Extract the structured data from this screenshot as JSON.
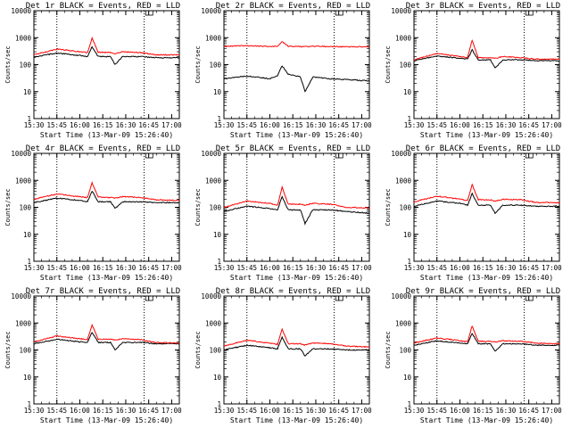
{
  "figure": {
    "colors": {
      "events": "#000000",
      "lld": "#ff0000",
      "axes": "#000000",
      "background": "#ffffff"
    }
  },
  "chart_data": [
    {
      "type": "line",
      "title": "Det 1r BLACK = Events, RED = LLD",
      "xlabel": "Start Time (13-Mar-09 15:26:40)",
      "ylabel": "Counts/sec",
      "xlim": [
        "15:30",
        "17:05"
      ],
      "ylim": [
        1,
        10000
      ],
      "yscale": "log",
      "x_ticks": [
        "15:30",
        "15:45",
        "16:00",
        "16:15",
        "16:30",
        "16:45",
        "17:00"
      ],
      "y_ticks": [
        "1",
        "10",
        "100",
        "1000",
        "10000"
      ],
      "vlines": [
        "15:45",
        "16:42"
      ],
      "grid": false,
      "legend": "title",
      "x": [
        "15:30",
        "15:45",
        "16:00",
        "16:05",
        "16:08",
        "16:12",
        "16:20",
        "16:23",
        "16:28",
        "16:40",
        "16:50",
        "17:05"
      ],
      "series": [
        {
          "name": "Events",
          "values": [
            190,
            270,
            220,
            200,
            450,
            200,
            200,
            100,
            200,
            200,
            180,
            180
          ]
        },
        {
          "name": "LLD",
          "values": [
            230,
            380,
            300,
            280,
            950,
            290,
            280,
            260,
            300,
            280,
            230,
            230
          ]
        }
      ]
    },
    {
      "type": "line",
      "title": "Det 2r BLACK = Events, RED = LLD",
      "xlabel": "Start Time (13-Mar-09 15:26:40)",
      "ylabel": "Counts/sec",
      "xlim": [
        "15:30",
        "17:05"
      ],
      "ylim": [
        1,
        10000
      ],
      "yscale": "log",
      "x_ticks": [
        "15:30",
        "15:45",
        "16:00",
        "16:15",
        "16:30",
        "16:45",
        "17:00"
      ],
      "y_ticks": [
        "1",
        "10",
        "100",
        "1000",
        "10000"
      ],
      "vlines": [
        "15:45",
        "16:42"
      ],
      "grid": false,
      "legend": "title",
      "x": [
        "15:30",
        "15:45",
        "16:00",
        "16:05",
        "16:08",
        "16:12",
        "16:20",
        "16:23",
        "16:28",
        "16:40",
        "16:50",
        "17:05"
      ],
      "series": [
        {
          "name": "Events",
          "values": [
            30,
            38,
            30,
            40,
            90,
            45,
            35,
            10,
            35,
            30,
            28,
            25
          ]
        },
        {
          "name": "LLD",
          "values": [
            480,
            500,
            470,
            480,
            700,
            480,
            470,
            460,
            480,
            470,
            460,
            460
          ]
        }
      ]
    },
    {
      "type": "line",
      "title": "Det 3r BLACK = Events, RED = LLD",
      "xlabel": "Start Time (13-Mar-09 15:26:40)",
      "ylabel": "Counts/sec",
      "xlim": [
        "15:30",
        "17:05"
      ],
      "ylim": [
        1,
        10000
      ],
      "yscale": "log",
      "x_ticks": [
        "15:30",
        "15:45",
        "16:00",
        "16:15",
        "16:30",
        "16:45",
        "17:00"
      ],
      "y_ticks": [
        "1",
        "10",
        "100",
        "1000",
        "10000"
      ],
      "vlines": [
        "15:45",
        "16:42"
      ],
      "grid": false,
      "legend": "title",
      "x": [
        "15:30",
        "15:45",
        "16:00",
        "16:05",
        "16:08",
        "16:12",
        "16:20",
        "16:23",
        "16:28",
        "16:40",
        "16:50",
        "17:05"
      ],
      "series": [
        {
          "name": "Events",
          "values": [
            140,
            210,
            170,
            160,
            350,
            150,
            150,
            75,
            150,
            150,
            140,
            140
          ]
        },
        {
          "name": "LLD",
          "values": [
            150,
            260,
            200,
            180,
            800,
            180,
            180,
            170,
            200,
            180,
            160,
            160
          ]
        }
      ]
    },
    {
      "type": "line",
      "title": "Det 4r BLACK = Events, RED = LLD",
      "xlabel": "Start Time (13-Mar-09 15:26:40)",
      "ylabel": "Counts/sec",
      "xlim": [
        "15:30",
        "17:05"
      ],
      "ylim": [
        1,
        10000
      ],
      "yscale": "log",
      "x_ticks": [
        "15:30",
        "15:45",
        "16:00",
        "16:15",
        "16:30",
        "16:45",
        "17:00"
      ],
      "y_ticks": [
        "1",
        "10",
        "100",
        "1000",
        "10000"
      ],
      "vlines": [
        "15:45",
        "16:42"
      ],
      "grid": false,
      "legend": "title",
      "x": [
        "15:30",
        "15:45",
        "16:00",
        "16:05",
        "16:08",
        "16:12",
        "16:20",
        "16:23",
        "16:28",
        "16:40",
        "16:50",
        "17:05"
      ],
      "series": [
        {
          "name": "Events",
          "values": [
            150,
            220,
            180,
            160,
            400,
            160,
            160,
            90,
            160,
            160,
            150,
            150
          ]
        },
        {
          "name": "LLD",
          "values": [
            200,
            310,
            250,
            230,
            800,
            240,
            230,
            220,
            250,
            230,
            190,
            180
          ]
        }
      ]
    },
    {
      "type": "line",
      "title": "Det 5r BLACK = Events, RED = LLD",
      "xlabel": "Start Time (13-Mar-09 15:26:40)",
      "ylabel": "Counts/sec",
      "xlim": [
        "15:30",
        "17:05"
      ],
      "ylim": [
        1,
        10000
      ],
      "yscale": "log",
      "x_ticks": [
        "15:30",
        "15:45",
        "16:00",
        "16:15",
        "16:30",
        "16:45",
        "17:00"
      ],
      "y_ticks": [
        "1",
        "10",
        "100",
        "1000",
        "10000"
      ],
      "vlines": [
        "15:45",
        "16:42"
      ],
      "grid": false,
      "legend": "title",
      "x": [
        "15:30",
        "15:45",
        "16:00",
        "16:05",
        "16:08",
        "16:12",
        "16:20",
        "16:23",
        "16:28",
        "16:40",
        "16:50",
        "17:05"
      ],
      "series": [
        {
          "name": "Events",
          "values": [
            70,
            110,
            90,
            80,
            250,
            80,
            80,
            25,
            80,
            80,
            70,
            60
          ]
        },
        {
          "name": "LLD",
          "values": [
            100,
            170,
            140,
            120,
            550,
            130,
            130,
            120,
            140,
            130,
            100,
            95
          ]
        }
      ]
    },
    {
      "type": "line",
      "title": "Det 6r BLACK = Events, RED = LLD",
      "xlabel": "Start Time (13-Mar-09 15:26:40)",
      "ylabel": "Counts/sec",
      "xlim": [
        "15:30",
        "17:05"
      ],
      "ylim": [
        1,
        10000
      ],
      "yscale": "log",
      "x_ticks": [
        "15:30",
        "15:45",
        "16:00",
        "16:15",
        "16:30",
        "16:45",
        "17:00"
      ],
      "y_ticks": [
        "1",
        "10",
        "100",
        "1000",
        "10000"
      ],
      "vlines": [
        "15:45",
        "16:42"
      ],
      "grid": false,
      "legend": "title",
      "x": [
        "15:30",
        "15:45",
        "16:00",
        "16:05",
        "16:08",
        "16:12",
        "16:20",
        "16:23",
        "16:28",
        "16:40",
        "16:50",
        "17:05"
      ],
      "series": [
        {
          "name": "Events",
          "values": [
            110,
            170,
            140,
            120,
            320,
            120,
            120,
            60,
            120,
            120,
            110,
            110
          ]
        },
        {
          "name": "LLD",
          "values": [
            160,
            260,
            200,
            180,
            700,
            190,
            190,
            170,
            200,
            190,
            150,
            150
          ]
        }
      ]
    },
    {
      "type": "line",
      "title": "Det 7r BLACK = Events, RED = LLD",
      "xlabel": "Start Time (13-Mar-09 15:26:40)",
      "ylabel": "Counts/sec",
      "xlim": [
        "15:30",
        "17:05"
      ],
      "ylim": [
        1,
        10000
      ],
      "yscale": "log",
      "x_ticks": [
        "15:30",
        "15:45",
        "16:00",
        "16:15",
        "16:30",
        "16:45",
        "17:00"
      ],
      "y_ticks": [
        "1",
        "10",
        "100",
        "1000",
        "10000"
      ],
      "vlines": [
        "15:45",
        "16:42"
      ],
      "grid": false,
      "legend": "title",
      "x": [
        "15:30",
        "15:45",
        "16:00",
        "16:05",
        "16:08",
        "16:12",
        "16:20",
        "16:23",
        "16:28",
        "16:40",
        "16:50",
        "17:05"
      ],
      "series": [
        {
          "name": "Events",
          "values": [
            170,
            250,
            200,
            190,
            450,
            190,
            190,
            100,
            190,
            190,
            170,
            170
          ]
        },
        {
          "name": "LLD",
          "values": [
            200,
            330,
            260,
            240,
            850,
            250,
            250,
            230,
            260,
            240,
            190,
            180
          ]
        }
      ]
    },
    {
      "type": "line",
      "title": "Det 8r BLACK = Events, RED = LLD",
      "xlabel": "Start Time (13-Mar-09 15:26:40)",
      "ylabel": "Counts/sec",
      "xlim": [
        "15:30",
        "17:05"
      ],
      "ylim": [
        1,
        10000
      ],
      "yscale": "log",
      "x_ticks": [
        "15:30",
        "15:45",
        "16:00",
        "16:15",
        "16:30",
        "16:45",
        "17:00"
      ],
      "y_ticks": [
        "1",
        "10",
        "100",
        "1000",
        "10000"
      ],
      "vlines": [
        "15:45",
        "16:42"
      ],
      "grid": false,
      "legend": "title",
      "x": [
        "15:30",
        "15:45",
        "16:00",
        "16:05",
        "16:08",
        "16:12",
        "16:20",
        "16:23",
        "16:28",
        "16:40",
        "16:50",
        "17:05"
      ],
      "series": [
        {
          "name": "Events",
          "values": [
            100,
            150,
            120,
            110,
            300,
            110,
            110,
            60,
            110,
            110,
            100,
            100
          ]
        },
        {
          "name": "LLD",
          "values": [
            140,
            230,
            180,
            160,
            600,
            170,
            170,
            150,
            180,
            170,
            140,
            130
          ]
        }
      ]
    },
    {
      "type": "line",
      "title": "Det 9r BLACK = Events, RED = LLD",
      "xlabel": "Start Time (13-Mar-09 15:26:40)",
      "ylabel": "Counts/sec",
      "xlim": [
        "15:30",
        "17:05"
      ],
      "ylim": [
        1,
        10000
      ],
      "yscale": "log",
      "x_ticks": [
        "15:30",
        "15:45",
        "16:00",
        "16:15",
        "16:30",
        "16:45",
        "17:00"
      ],
      "y_ticks": [
        "1",
        "10",
        "100",
        "1000",
        "10000"
      ],
      "vlines": [
        "15:45",
        "16:42"
      ],
      "grid": false,
      "legend": "title",
      "x": [
        "15:30",
        "15:45",
        "16:00",
        "16:05",
        "16:08",
        "16:12",
        "16:20",
        "16:23",
        "16:28",
        "16:40",
        "16:50",
        "17:05"
      ],
      "series": [
        {
          "name": "Events",
          "values": [
            150,
            220,
            180,
            170,
            420,
            170,
            170,
            90,
            170,
            170,
            150,
            150
          ]
        },
        {
          "name": "LLD",
          "values": [
            180,
            280,
            220,
            200,
            780,
            210,
            210,
            200,
            220,
            210,
            180,
            170
          ]
        }
      ]
    }
  ]
}
